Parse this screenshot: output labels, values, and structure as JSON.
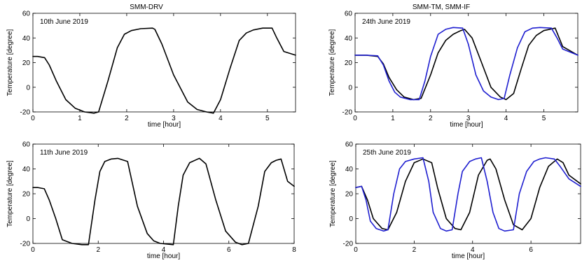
{
  "figure": {
    "panel_titles": [
      "SMM-DRV",
      "SMM-TM, SMM-IF"
    ]
  },
  "chart_data": [
    {
      "type": "line",
      "title": "SMM-DRV",
      "annotation": "10th June 2019",
      "xlabel": "time [hour]",
      "ylabel": "Temperature [degree]",
      "xlim": [
        0,
        5.6
      ],
      "ylim": [
        -20,
        60
      ],
      "xticks": [
        0,
        1,
        2,
        3,
        4,
        5
      ],
      "yticks": [
        -20,
        0,
        20,
        40,
        60
      ],
      "series": [
        {
          "color": "#000000",
          "x": [
            0,
            0.1,
            0.25,
            0.35,
            0.5,
            0.7,
            0.9,
            1.1,
            1.3,
            1.4,
            1.6,
            1.8,
            1.95,
            2.1,
            2.3,
            2.55,
            2.6,
            2.75,
            3.0,
            3.3,
            3.5,
            3.7,
            3.85,
            4.0,
            4.2,
            4.4,
            4.55,
            4.7,
            4.9,
            5.1,
            5.2,
            5.35,
            5.6
          ],
          "values": [
            25,
            25,
            24,
            18,
            5,
            -10,
            -17,
            -20,
            -21,
            -20,
            5,
            32,
            43,
            46,
            47.5,
            48,
            47,
            35,
            10,
            -12,
            -18,
            -20,
            -21,
            -10,
            15,
            38,
            44,
            46.5,
            48,
            48,
            40,
            29,
            26
          ]
        }
      ]
    },
    {
      "type": "line",
      "title": "",
      "annotation": "11th June 2019",
      "xlabel": "time [hour]",
      "ylabel": "Temperature [degree]",
      "xlim": [
        0,
        8
      ],
      "ylim": [
        -20,
        60
      ],
      "xticks": [
        0,
        2,
        4,
        6,
        8
      ],
      "yticks": [
        -20,
        0,
        20,
        40,
        60
      ],
      "series": [
        {
          "color": "#000000",
          "x": [
            0,
            0.15,
            0.35,
            0.5,
            0.7,
            0.9,
            1.2,
            1.5,
            1.7,
            1.9,
            2.05,
            2.2,
            2.4,
            2.6,
            2.9,
            3.2,
            3.5,
            3.7,
            3.9,
            4.3,
            4.45,
            4.6,
            4.8,
            5.05,
            5.1,
            5.3,
            5.6,
            5.9,
            6.2,
            6.4,
            6.6,
            6.9,
            7.1,
            7.3,
            7.45,
            7.6,
            7.8,
            8.0
          ],
          "values": [
            25,
            25,
            24,
            15,
            0,
            -17,
            -20,
            -21,
            -21,
            15,
            38,
            46,
            48,
            48.5,
            46,
            10,
            -12,
            -18,
            -20,
            -21,
            10,
            35,
            45,
            48,
            48.5,
            44,
            15,
            -10,
            -19,
            -21,
            -20,
            10,
            38,
            45,
            47,
            48,
            30,
            26
          ]
        }
      ]
    },
    {
      "type": "line",
      "title": "SMM-TM, SMM-IF",
      "annotation": "24th June 2019",
      "xlabel": "time [hour]",
      "ylabel": "Temperature [degree]",
      "xlim": [
        0,
        5.9
      ],
      "ylim": [
        -20,
        60
      ],
      "xticks": [
        0,
        1,
        2,
        3,
        4,
        5
      ],
      "yticks": [
        -20,
        0,
        20,
        40,
        60
      ],
      "series": [
        {
          "color": "#000000",
          "x": [
            0,
            0.3,
            0.6,
            0.75,
            0.9,
            1.1,
            1.3,
            1.55,
            1.75,
            2.0,
            2.2,
            2.4,
            2.6,
            2.8,
            2.9,
            3.1,
            3.35,
            3.6,
            3.85,
            4.0,
            4.2,
            4.4,
            4.6,
            4.8,
            5.0,
            5.3,
            5.5,
            5.9
          ],
          "values": [
            26,
            26,
            25,
            19,
            8,
            -2,
            -8,
            -10,
            -9,
            10,
            28,
            38,
            43,
            46,
            47,
            40,
            20,
            0,
            -8,
            -10,
            -5,
            15,
            34,
            42,
            46,
            48,
            33,
            26
          ]
        },
        {
          "color": "#1f1fd0",
          "x": [
            0,
            0.3,
            0.6,
            0.75,
            0.9,
            1.05,
            1.2,
            1.45,
            1.7,
            1.85,
            2.0,
            2.2,
            2.4,
            2.6,
            2.85,
            3.0,
            3.2,
            3.4,
            3.6,
            3.8,
            3.95,
            4.1,
            4.3,
            4.5,
            4.7,
            4.9,
            5.2,
            5.35,
            5.5,
            5.9
          ],
          "values": [
            26,
            26,
            25.5,
            18,
            5,
            -4,
            -8,
            -10,
            -10,
            5,
            25,
            43,
            47,
            48.5,
            48,
            35,
            10,
            -3,
            -8,
            -10,
            -9,
            10,
            32,
            45,
            48,
            48.5,
            48,
            40,
            31,
            26
          ]
        }
      ]
    },
    {
      "type": "line",
      "title": "",
      "annotation": "25th June 2019",
      "xlabel": "time [hour]",
      "ylabel": "Temperature [degree]",
      "xlim": [
        0,
        7.7
      ],
      "ylim": [
        -20,
        60
      ],
      "xticks": [
        0,
        2,
        4,
        6
      ],
      "yticks": [
        -20,
        0,
        20,
        40,
        60
      ],
      "series": [
        {
          "color": "#000000",
          "x": [
            0,
            0.2,
            0.4,
            0.6,
            0.9,
            1.1,
            1.4,
            1.7,
            2.0,
            2.3,
            2.6,
            2.8,
            3.1,
            3.4,
            3.6,
            3.9,
            4.2,
            4.5,
            4.6,
            4.8,
            5.1,
            5.4,
            5.7,
            6.0,
            6.3,
            6.6,
            6.9,
            7.1,
            7.3,
            7.7
          ],
          "values": [
            25,
            26,
            15,
            0,
            -8,
            -9,
            5,
            30,
            45,
            48,
            45,
            25,
            0,
            -8,
            -9,
            5,
            35,
            47,
            48,
            40,
            15,
            -5,
            -9,
            0,
            25,
            42,
            48,
            45,
            35,
            28
          ]
        },
        {
          "color": "#1f1fd0",
          "x": [
            0,
            0.2,
            0.35,
            0.5,
            0.7,
            0.95,
            1.1,
            1.3,
            1.5,
            1.7,
            2.0,
            2.3,
            2.5,
            2.65,
            2.9,
            3.1,
            3.3,
            3.5,
            3.65,
            3.9,
            4.1,
            4.3,
            4.5,
            4.7,
            4.9,
            5.1,
            5.4,
            5.6,
            5.85,
            6.1,
            6.3,
            6.5,
            6.8,
            7.0,
            7.3,
            7.7
          ],
          "values": [
            25,
            26,
            15,
            -2,
            -8,
            -10,
            -9,
            20,
            40,
            46,
            48,
            49,
            30,
            5,
            -8,
            -10,
            -9,
            20,
            38,
            46,
            48,
            49,
            30,
            5,
            -8,
            -10,
            -9,
            20,
            38,
            46,
            48,
            49,
            48,
            42,
            32,
            26
          ]
        }
      ]
    }
  ]
}
